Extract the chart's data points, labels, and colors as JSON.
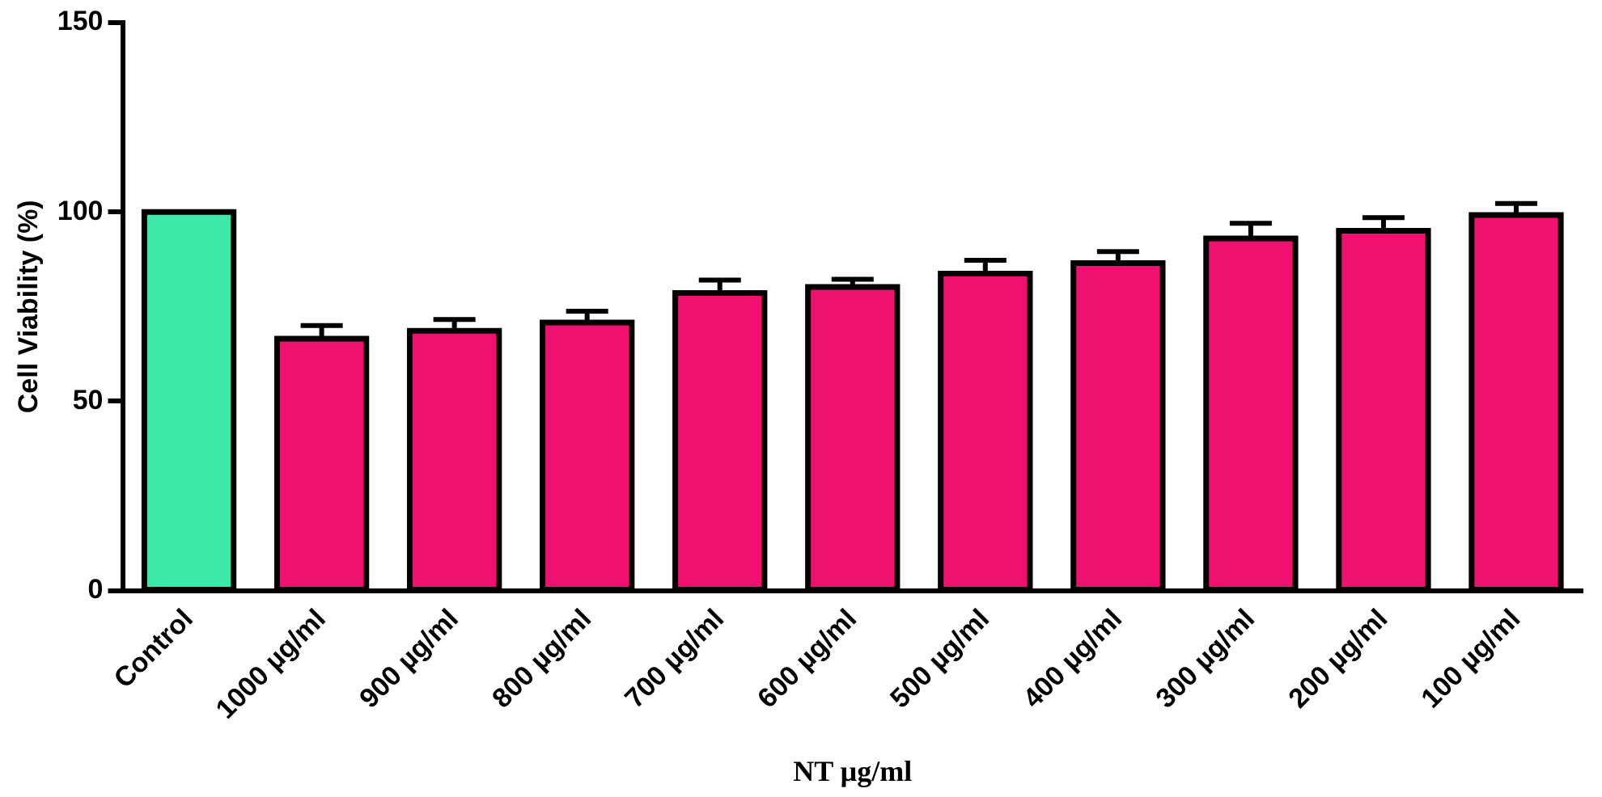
{
  "chart_data": {
    "type": "bar",
    "xlabel": "NT µg/ml",
    "ylabel": "Cell Viability (%)",
    "categories": [
      "Control",
      "1000 µg/ml",
      "900 µg/ml",
      "800 µg/ml",
      "700 µg/ml",
      "600 µg/ml",
      "500 µg/ml",
      "400 µg/ml",
      "300 µg/ml",
      "200 µg/ml",
      "100 µg/ml"
    ],
    "values": [
      100,
      66.5,
      68.6,
      70.8,
      78.6,
      80.2,
      83.7,
      86.5,
      93,
      95,
      99.2
    ],
    "errors": [
      null,
      3.5,
      3,
      3,
      3.4,
      2,
      3.5,
      3,
      4,
      3.5,
      3
    ],
    "colors": [
      "#3de8a8",
      "#f0106f",
      "#f0106f",
      "#f0106f",
      "#f0106f",
      "#f0106f",
      "#f0106f",
      "#f0106f",
      "#f0106f",
      "#f0106f",
      "#f0106f"
    ],
    "ylim": [
      0,
      150
    ],
    "yticks": [
      0,
      50,
      100,
      150
    ],
    "grid": false,
    "legend": false
  }
}
